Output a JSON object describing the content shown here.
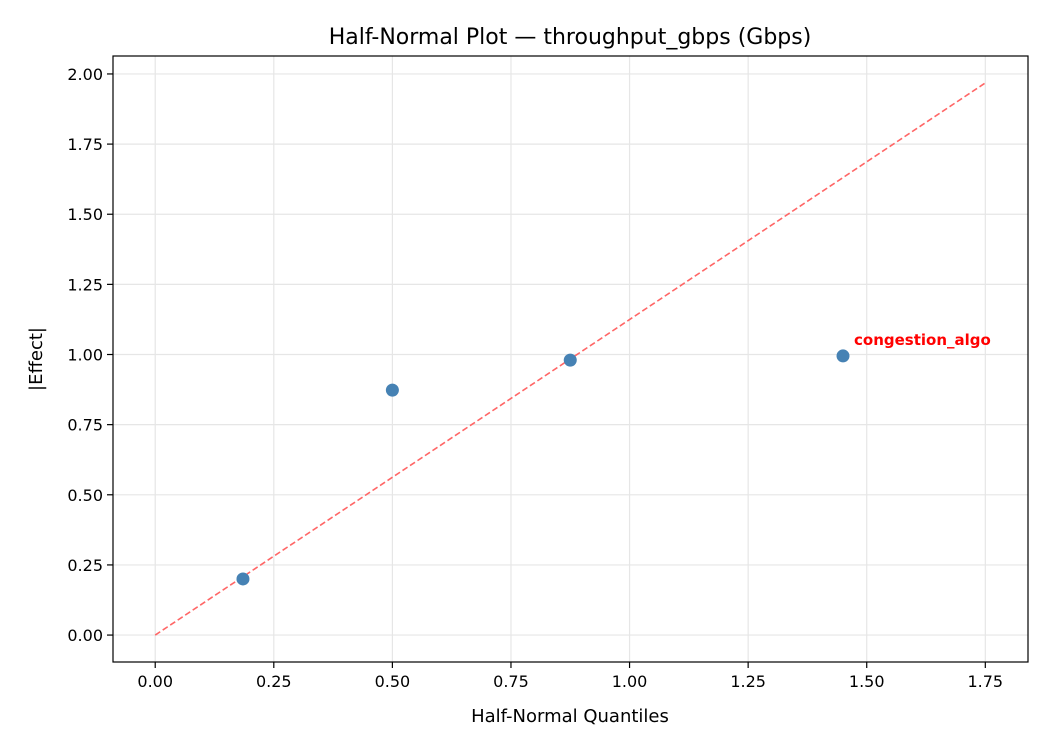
{
  "chart_data": {
    "type": "scatter",
    "title": "Half-Normal Plot — throughput_gbps (Gbps)",
    "xlabel": "Half-Normal Quantiles",
    "ylabel": "|Effect|",
    "xlim": [
      -0.089,
      1.84
    ],
    "ylim": [
      -0.096,
      2.064
    ],
    "xticks": [
      0.0,
      0.25,
      0.5,
      0.75,
      1.0,
      1.25,
      1.5,
      1.75
    ],
    "xtick_labels": [
      "0.00",
      "0.25",
      "0.50",
      "0.75",
      "1.00",
      "1.25",
      "1.50",
      "1.75"
    ],
    "yticks": [
      0.0,
      0.25,
      0.5,
      0.75,
      1.0,
      1.25,
      1.5,
      1.75,
      2.0
    ],
    "ytick_labels": [
      "0.00",
      "0.25",
      "0.50",
      "0.75",
      "1.00",
      "1.25",
      "1.50",
      "1.75",
      "2.00"
    ],
    "grid": true,
    "points": [
      {
        "x": 0.185,
        "y": 0.2
      },
      {
        "x": 0.5,
        "y": 0.873
      },
      {
        "x": 0.875,
        "y": 0.98
      },
      {
        "x": 1.45,
        "y": 0.995,
        "label": "congestion_algo"
      }
    ],
    "reference_line": {
      "x": [
        0.0,
        1.75
      ],
      "y": [
        0.0,
        1.968
      ],
      "style": "dashed"
    },
    "colors": {
      "points": "#4682b4",
      "reference_line": "#ff6666",
      "annotation": "#ff0000",
      "grid": "#e6e6e6"
    }
  }
}
